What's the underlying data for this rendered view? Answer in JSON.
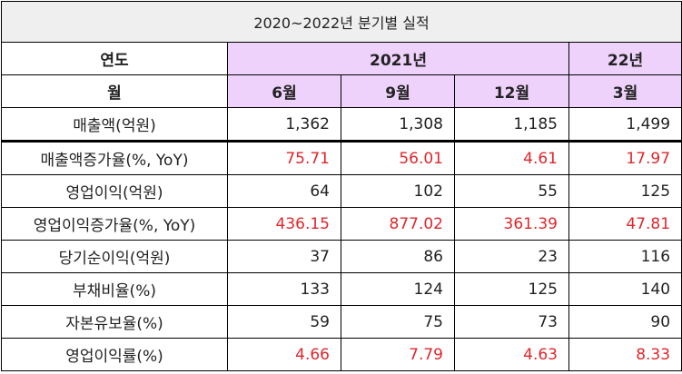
{
  "title": "2020~2022년 분기별 실적",
  "header": {
    "year_label": "연도",
    "month_label": "월",
    "year_2021": "2021년",
    "year_22": "22년",
    "months": [
      "6월",
      "9월",
      "12월",
      "3월"
    ]
  },
  "rows": [
    {
      "label": "매출액(억원)",
      "values": [
        "1,362",
        "1,308",
        "1,185",
        "1,499"
      ],
      "highlight": false
    },
    {
      "label": "매출액증가율(%, YoY)",
      "values": [
        "75.71",
        "56.01",
        "4.61",
        "17.97"
      ],
      "highlight": true
    },
    {
      "label": "영업이익(억원)",
      "values": [
        "64",
        "102",
        "55",
        "125"
      ],
      "highlight": false
    },
    {
      "label": "영업이익증가율(%, YoY)",
      "values": [
        "436.15",
        "877.02",
        "361.39",
        "47.81"
      ],
      "highlight": true
    },
    {
      "label": "당기순이익(억원)",
      "values": [
        "37",
        "86",
        "23",
        "116"
      ],
      "highlight": false
    },
    {
      "label": "부채비율(%)",
      "values": [
        "133",
        "124",
        "125",
        "140"
      ],
      "highlight": false
    },
    {
      "label": "자본유보율(%)",
      "values": [
        "59",
        "75",
        "73",
        "90"
      ],
      "highlight": false
    },
    {
      "label": "영업이익률(%)",
      "values": [
        "4.66",
        "7.79",
        "4.63",
        "8.33"
      ],
      "highlight": true
    }
  ],
  "colors": {
    "header_bg": "#eed2fb",
    "title_bg": "#efefef",
    "highlight_text": "#e0262b"
  }
}
